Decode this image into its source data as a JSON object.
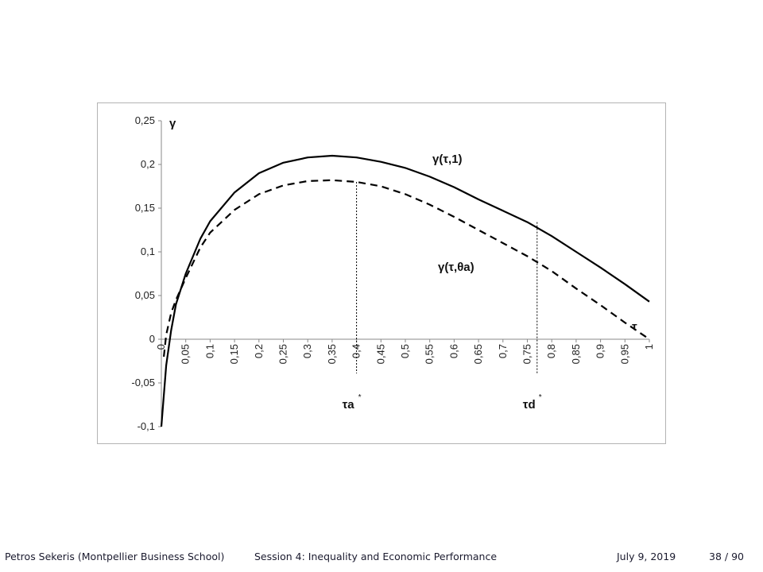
{
  "chart_data": {
    "type": "line",
    "ylabel": "γ",
    "xlabel": "τ",
    "xlim": [
      0,
      1
    ],
    "ylim": [
      -0.1,
      0.25
    ],
    "x_ticks": [
      "0",
      "0,05",
      "0,1",
      "0,15",
      "0,2",
      "0,25",
      "0,3",
      "0,35",
      "0,4",
      "0,45",
      "0,5",
      "0,55",
      "0,6",
      "0,65",
      "0,7",
      "0,75",
      "0,8",
      "0,85",
      "0,9",
      "0,95",
      "1"
    ],
    "y_ticks": [
      "-0,1",
      "-0,05",
      "0",
      "0,05",
      "0,1",
      "0,15",
      "0,2",
      "0,25"
    ],
    "grid": false,
    "series": [
      {
        "name": "γ(τ,1)",
        "style": "solid",
        "x": [
          0,
          0.01,
          0.02,
          0.03,
          0.05,
          0.08,
          0.1,
          0.15,
          0.2,
          0.25,
          0.3,
          0.35,
          0.4,
          0.45,
          0.5,
          0.55,
          0.6,
          0.65,
          0.7,
          0.75,
          0.8,
          0.85,
          0.9,
          0.95,
          1.0
        ],
        "y": [
          -0.1,
          -0.03,
          0.01,
          0.04,
          0.075,
          0.115,
          0.135,
          0.168,
          0.19,
          0.202,
          0.208,
          0.21,
          0.208,
          0.203,
          0.196,
          0.186,
          0.174,
          0.16,
          0.147,
          0.134,
          0.118,
          0.1,
          0.082,
          0.063,
          0.043
        ]
      },
      {
        "name": "γ(τ,θa)",
        "style": "dashed",
        "x": [
          0.005,
          0.01,
          0.02,
          0.03,
          0.05,
          0.08,
          0.1,
          0.15,
          0.2,
          0.25,
          0.3,
          0.35,
          0.4,
          0.45,
          0.5,
          0.55,
          0.6,
          0.65,
          0.7,
          0.75,
          0.8,
          0.85,
          0.9,
          0.95,
          1.0
        ],
        "y": [
          -0.02,
          0.005,
          0.03,
          0.045,
          0.07,
          0.105,
          0.122,
          0.148,
          0.166,
          0.176,
          0.181,
          0.182,
          0.18,
          0.175,
          0.166,
          0.154,
          0.14,
          0.125,
          0.11,
          0.095,
          0.078,
          0.058,
          0.039,
          0.019,
          0.0
        ]
      }
    ],
    "markers": [
      {
        "label": "τa",
        "sup": "*",
        "x": 0.4,
        "y": 0.18
      },
      {
        "label": "τd",
        "sup": "*",
        "x": 0.77,
        "y": 0.134
      }
    ]
  },
  "footer": {
    "author": "Petros Sekeris  (Montpellier Business School)",
    "title": "Session 4: Inequality and Economic Performance",
    "date": "July 9, 2019",
    "page": "38 / 90"
  }
}
